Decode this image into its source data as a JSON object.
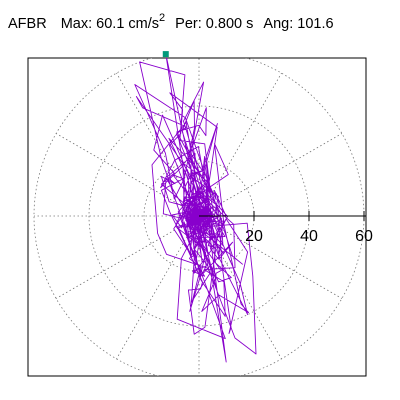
{
  "header": {
    "station": "AFBR",
    "max_label": "Max:",
    "max_value": "60.1 cm/s",
    "max_exponent": "2",
    "per_label": "Per:",
    "per_value": "0.800 s",
    "ang_label": "Ang:",
    "ang_value": "101.6"
  },
  "chart_data": {
    "type": "polar-hodogram",
    "radial_ticks": [
      20,
      40,
      60
    ],
    "rmax": 60,
    "ring_values": [
      20,
      40,
      60
    ],
    "spoke_step_deg": 30,
    "grid": true,
    "trace_color": "#8800cc",
    "peak_marker_color": "#009a7a",
    "peak_marker": {
      "angle_deg": 101.6,
      "radius": 60.1
    },
    "trace_extent": {
      "up_angle_deg": 101.6,
      "up_radius": 60.1,
      "down_angle_deg": 281.6,
      "down_radius": 54
    }
  }
}
